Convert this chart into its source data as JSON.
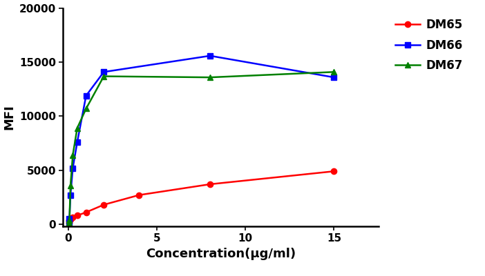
{
  "series": [
    {
      "label": "DM65",
      "color": "#FF0000",
      "marker": "o",
      "markersize": 6,
      "x": [
        0.03,
        0.06,
        0.12,
        0.25,
        0.5,
        1.0,
        2.0,
        4.0,
        8.0,
        15.0
      ],
      "y": [
        150,
        300,
        450,
        600,
        800,
        1100,
        1800,
        2700,
        3700,
        4900
      ]
    },
    {
      "label": "DM66",
      "color": "#0000FF",
      "marker": "s",
      "markersize": 6,
      "x": [
        0.03,
        0.06,
        0.12,
        0.25,
        0.5,
        1.0,
        2.0,
        8.0,
        15.0
      ],
      "y": [
        200,
        500,
        2700,
        5200,
        7600,
        11900,
        14100,
        15600,
        13600
      ]
    },
    {
      "label": "DM67",
      "color": "#008000",
      "marker": "^",
      "markersize": 6,
      "x": [
        0.03,
        0.06,
        0.12,
        0.25,
        0.5,
        1.0,
        2.0,
        8.0,
        15.0
      ],
      "y": [
        100,
        350,
        3600,
        6400,
        8900,
        10700,
        13700,
        13600,
        14100
      ]
    }
  ],
  "xlabel": "Concentration(μg/ml)",
  "ylabel": "MFI",
  "xlim": [
    -0.3,
    17.5
  ],
  "ylim": [
    -200,
    20000
  ],
  "yticks": [
    0,
    5000,
    10000,
    15000,
    20000
  ],
  "xticks": [
    0,
    5,
    10,
    15
  ],
  "linewidth": 1.8,
  "background_color": "#ffffff",
  "legend_fontsize": 12,
  "axis_label_fontsize": 13,
  "tick_fontsize": 11
}
